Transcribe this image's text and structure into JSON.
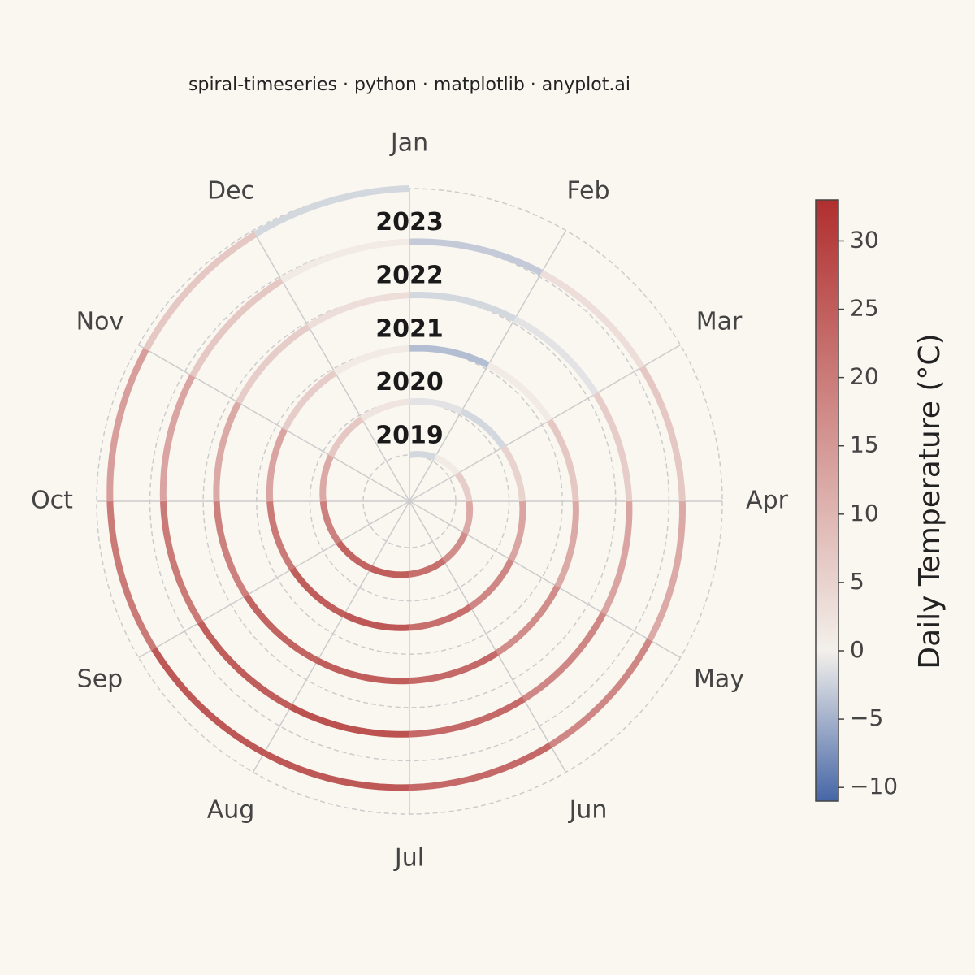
{
  "chart_data": {
    "type": "spiral",
    "title": "spiral-timeseries · python · matplotlib · anyplot.ai",
    "categories": [
      "Jan",
      "Feb",
      "Mar",
      "Apr",
      "May",
      "Jun",
      "Jul",
      "Aug",
      "Sep",
      "Oct",
      "Nov",
      "Dec"
    ],
    "series": [
      {
        "name": "2019",
        "values": [
          -2,
          1,
          6,
          12,
          17,
          22,
          25,
          24,
          19,
          12,
          7,
          2
        ]
      },
      {
        "name": "2020",
        "values": [
          -1,
          -2,
          5,
          13,
          18,
          22,
          26,
          25,
          20,
          13,
          6,
          1
        ]
      },
      {
        "name": "2021",
        "values": [
          -4,
          1,
          7,
          12,
          17,
          23,
          25,
          24,
          19,
          12,
          6,
          3
        ]
      },
      {
        "name": "2022",
        "values": [
          -2,
          -1,
          6,
          13,
          18,
          23,
          27,
          25,
          20,
          13,
          7,
          1
        ]
      },
      {
        "name": "2023",
        "values": [
          -3,
          3,
          7,
          12,
          18,
          23,
          26,
          26,
          20,
          14,
          7,
          -2
        ]
      }
    ],
    "colorbar": {
      "label": "Daily Temperature (°C)",
      "clim": [
        -11,
        33
      ],
      "cmap": [
        "#4566a6",
        "#f3f0eb",
        "#b02f2e"
      ],
      "ticks": [
        {
          "value": -10,
          "label": "−10"
        },
        {
          "value": -5,
          "label": "−5"
        },
        0,
        5,
        10,
        15,
        20,
        25,
        30
      ]
    }
  }
}
